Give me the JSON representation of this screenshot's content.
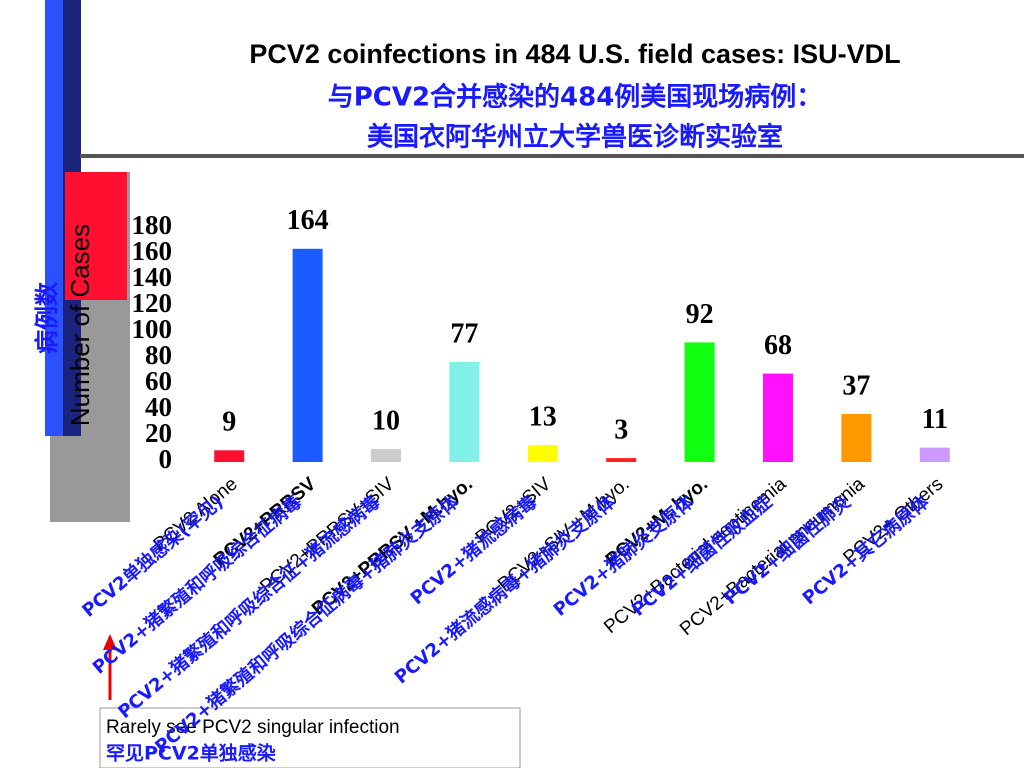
{
  "chart_data": {
    "type": "bar",
    "title": "PCV2 coinfections in 484 U.S. field cases: ISU-VDL",
    "title_cn": [
      "与PCV2合并感染的484例美国现场病例：",
      "美国衣阿华州立大学兽医诊断实验室"
    ],
    "y_label": "Number of Cases",
    "y_label_cn": "病例数",
    "categories": [
      "PCV2 Alone",
      "PCV2+PRRSV",
      "PCV2+PRRSV+SIV",
      "PCV2+PRRSV +M.hyo.",
      "PCV2+SIV",
      "PCV2+SIV +M.hyo.",
      "PCV2+M. hyo.",
      "PCV2+Bacterial septicemia",
      "PCV2+Bacterial pneumonia",
      "PCV2+ Others"
    ],
    "categories_cn": [
      "PCV2单独感染(罕见)",
      "PCV2+猪繁殖和呼吸综合征病毒",
      "PCV2+猪繁殖和呼吸综合征+猪流感病毒",
      "PCV2+猪繁殖和呼吸综合征病毒+猪肺炎支原体",
      "PCV2+猪流感病毒",
      "PCV2+猪流感病毒+猪肺炎支原体",
      "PCV2+猪肺炎支原体",
      "PCV2+细菌性败血症",
      "PCV2+细菌性肺炎",
      "PCV2+其它病原体"
    ],
    "values": [
      9,
      164,
      10,
      77,
      13,
      3,
      92,
      68,
      37,
      11
    ],
    "colors": [
      "#ff1030",
      "#1a5cff",
      "#cccccc",
      "#80f0e8",
      "#ffff00",
      "#ff2020",
      "#10ff10",
      "#ff10ff",
      "#ff9900",
      "#cc99ff"
    ],
    "ylim": [
      0,
      180
    ],
    "yticks": [
      0,
      20,
      40,
      60,
      80,
      100,
      120,
      140,
      160,
      180
    ],
    "annotation": [
      "Rarely see PCV2 singular infection",
      "罕见PCV2单独感染"
    ]
  }
}
